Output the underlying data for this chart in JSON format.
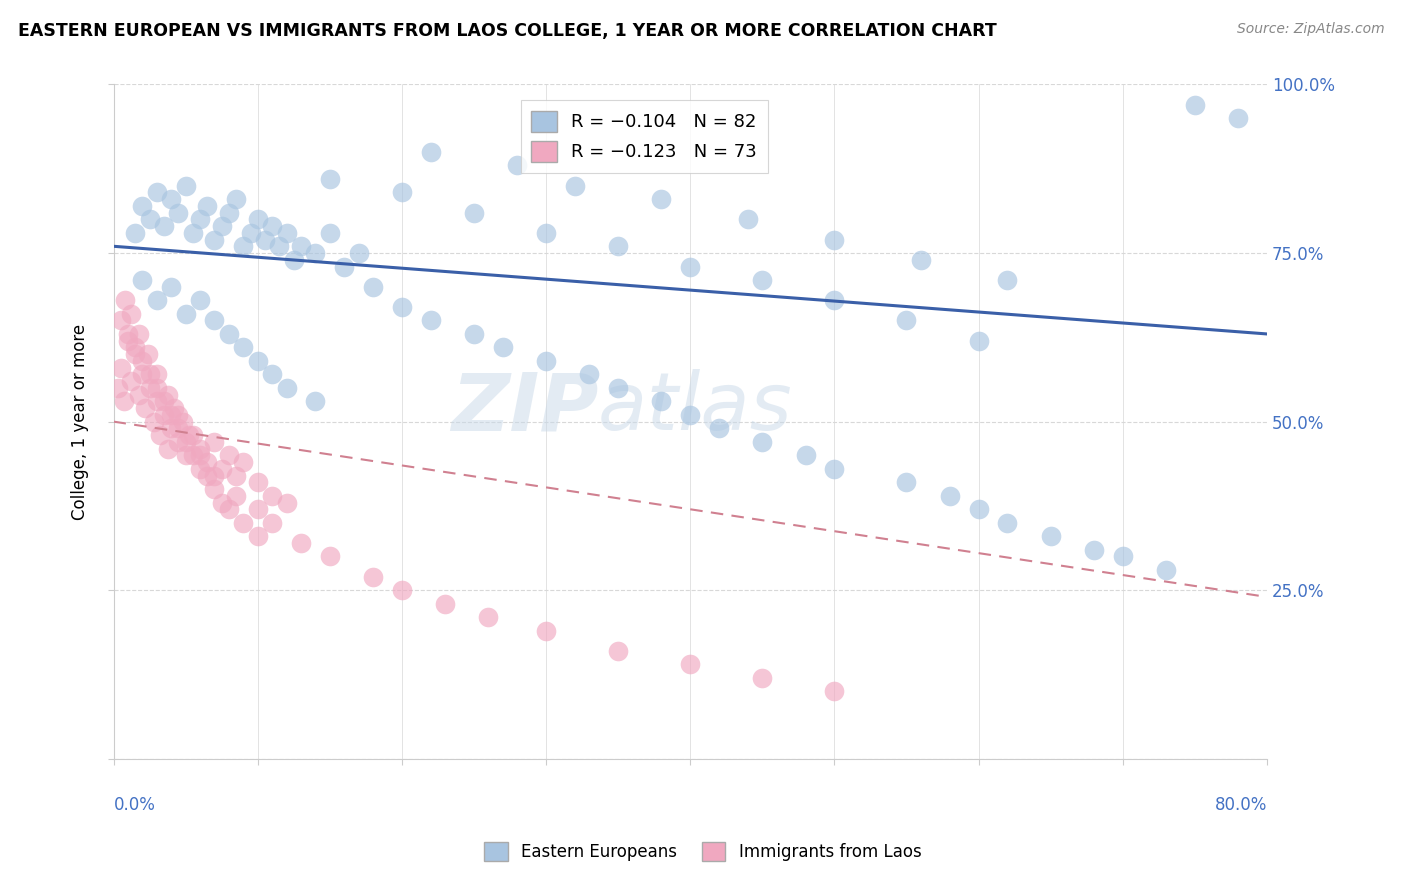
{
  "title": "EASTERN EUROPEAN VS IMMIGRANTS FROM LAOS COLLEGE, 1 YEAR OR MORE CORRELATION CHART",
  "source_text": "Source: ZipAtlas.com",
  "ylabel": "College, 1 year or more",
  "xlim": [
    0.0,
    80.0
  ],
  "ylim": [
    0.0,
    100.0
  ],
  "blue_color": "#a8c4e0",
  "pink_color": "#f0a8c0",
  "blue_line_color": "#3a5fa8",
  "pink_line_color": "#d08090",
  "blue_line_start_y": 76.0,
  "blue_line_end_y": 63.0,
  "pink_line_start_y": 50.0,
  "pink_line_end_y": 24.0,
  "watermark_zip": "ZIP",
  "watermark_atlas": "atlas",
  "legend_blue_label": "R = −0.104   N = 82",
  "legend_pink_label": "R = −0.123   N = 73",
  "legend_series_blue": "Eastern Europeans",
  "legend_series_pink": "Immigrants from Laos",
  "blue_x": [
    1.5,
    2.0,
    2.5,
    3.0,
    3.5,
    4.0,
    4.5,
    5.0,
    5.5,
    6.0,
    6.5,
    7.0,
    7.5,
    8.0,
    8.5,
    9.0,
    9.5,
    10.0,
    10.5,
    11.0,
    11.5,
    12.0,
    12.5,
    13.0,
    14.0,
    15.0,
    16.0,
    17.0,
    2.0,
    3.0,
    4.0,
    5.0,
    6.0,
    7.0,
    8.0,
    9.0,
    10.0,
    11.0,
    12.0,
    14.0,
    18.0,
    20.0,
    22.0,
    25.0,
    27.0,
    30.0,
    33.0,
    35.0,
    38.0,
    40.0,
    42.0,
    45.0,
    48.0,
    50.0,
    55.0,
    58.0,
    60.0,
    62.0,
    65.0,
    68.0,
    70.0,
    73.0,
    75.0,
    78.0,
    15.0,
    20.0,
    25.0,
    30.0,
    35.0,
    40.0,
    45.0,
    50.0,
    55.0,
    60.0,
    22.0,
    28.0,
    32.0,
    38.0,
    44.0,
    50.0,
    56.0,
    62.0
  ],
  "blue_y": [
    78,
    82,
    80,
    84,
    79,
    83,
    81,
    85,
    78,
    80,
    82,
    77,
    79,
    81,
    83,
    76,
    78,
    80,
    77,
    79,
    76,
    78,
    74,
    76,
    75,
    78,
    73,
    75,
    71,
    68,
    70,
    66,
    68,
    65,
    63,
    61,
    59,
    57,
    55,
    53,
    70,
    67,
    65,
    63,
    61,
    59,
    57,
    55,
    53,
    51,
    49,
    47,
    45,
    43,
    41,
    39,
    37,
    35,
    33,
    31,
    30,
    28,
    97,
    95,
    86,
    84,
    81,
    78,
    76,
    73,
    71,
    68,
    65,
    62,
    90,
    88,
    85,
    83,
    80,
    77,
    74,
    71
  ],
  "pink_x": [
    0.3,
    0.5,
    0.7,
    1.0,
    1.2,
    1.5,
    1.8,
    2.0,
    2.2,
    2.5,
    2.8,
    3.0,
    3.2,
    3.5,
    3.8,
    4.0,
    4.2,
    4.5,
    4.8,
    5.0,
    5.5,
    6.0,
    6.5,
    7.0,
    7.5,
    8.0,
    8.5,
    9.0,
    10.0,
    11.0,
    12.0,
    0.5,
    1.0,
    1.5,
    2.0,
    2.5,
    3.0,
    3.5,
    4.0,
    4.5,
    5.0,
    5.5,
    6.0,
    6.5,
    7.0,
    7.5,
    8.0,
    9.0,
    10.0,
    0.8,
    1.2,
    1.8,
    2.4,
    3.0,
    3.8,
    4.5,
    5.2,
    6.0,
    7.0,
    8.5,
    10.0,
    11.0,
    13.0,
    15.0,
    18.0,
    20.0,
    23.0,
    26.0,
    30.0,
    35.0,
    40.0,
    45.0,
    50.0
  ],
  "pink_y": [
    55,
    58,
    53,
    62,
    56,
    60,
    54,
    57,
    52,
    55,
    50,
    53,
    48,
    51,
    46,
    49,
    52,
    47,
    50,
    45,
    48,
    46,
    44,
    47,
    43,
    45,
    42,
    44,
    41,
    39,
    38,
    65,
    63,
    61,
    59,
    57,
    55,
    53,
    51,
    49,
    47,
    45,
    43,
    42,
    40,
    38,
    37,
    35,
    33,
    68,
    66,
    63,
    60,
    57,
    54,
    51,
    48,
    45,
    42,
    39,
    37,
    35,
    32,
    30,
    27,
    25,
    23,
    21,
    19,
    16,
    14,
    12,
    10
  ]
}
